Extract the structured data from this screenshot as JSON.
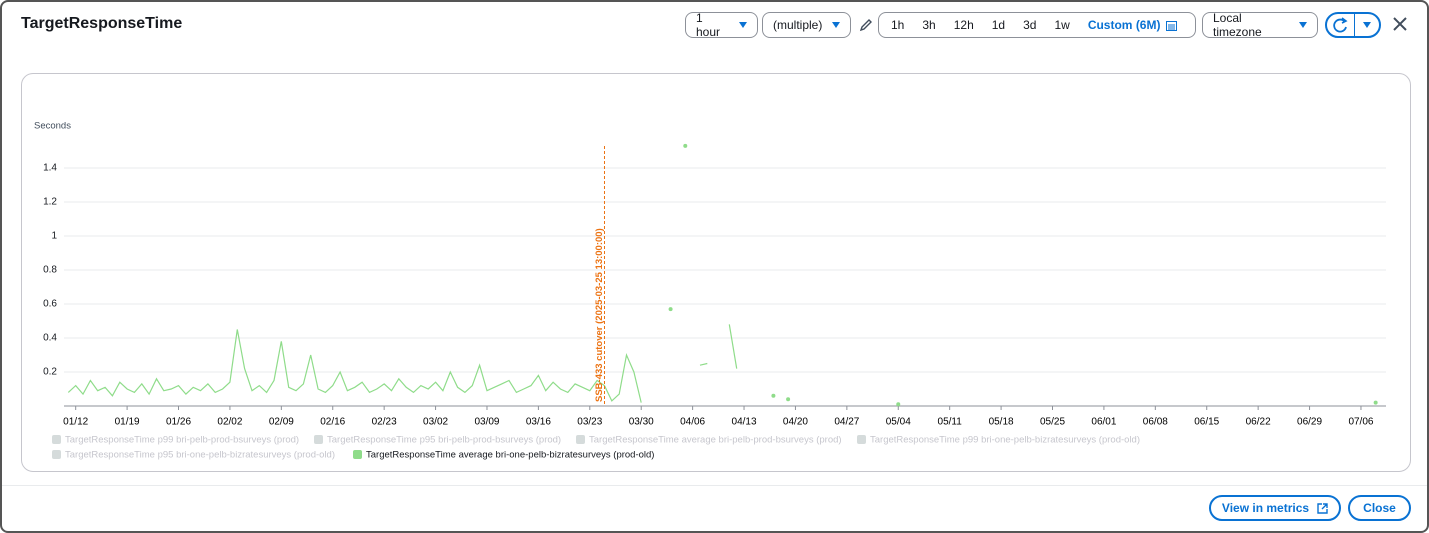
{
  "header": {
    "title": "TargetResponseTime",
    "period": "1 hour",
    "statistic": "(multiple)",
    "ranges": [
      "1h",
      "3h",
      "12h",
      "1d",
      "3d",
      "1w"
    ],
    "custom_range": "Custom (6M)",
    "timezone": "Local timezone"
  },
  "chart_data": {
    "type": "line",
    "y_label": "Seconds",
    "x": [
      "01/11",
      "01/12",
      "01/13",
      "01/14",
      "01/15",
      "01/16",
      "01/17",
      "01/18",
      "01/19",
      "01/20",
      "01/21",
      "01/22",
      "01/23",
      "01/24",
      "01/25",
      "01/26",
      "01/27",
      "01/28",
      "01/29",
      "01/30",
      "01/31",
      "02/01",
      "02/02",
      "02/03",
      "02/04",
      "02/05",
      "02/06",
      "02/07",
      "02/08",
      "02/09",
      "02/10",
      "02/11",
      "02/12",
      "02/13",
      "02/14",
      "02/15",
      "02/16",
      "02/17",
      "02/18",
      "02/19",
      "02/20",
      "02/21",
      "02/22",
      "02/23",
      "02/24",
      "02/25",
      "02/26",
      "02/27",
      "02/28",
      "03/01",
      "03/02",
      "03/03",
      "03/04",
      "03/05",
      "03/06",
      "03/07",
      "03/08",
      "03/09",
      "03/10",
      "03/11",
      "03/12",
      "03/13",
      "03/14",
      "03/15",
      "03/16",
      "03/17",
      "03/18",
      "03/19",
      "03/20",
      "03/21",
      "03/22",
      "03/23",
      "03/24",
      "03/25",
      "03/26",
      "03/27",
      "03/28",
      "03/29",
      "03/30",
      "03/31",
      "04/03",
      "04/04",
      "04/05",
      "04/06",
      "04/07",
      "04/08",
      "04/09",
      "04/11",
      "04/12",
      "04/13",
      "04/17",
      "04/18",
      "04/19",
      "04/20",
      "05/04",
      "05/05",
      "07/08"
    ],
    "series": [
      {
        "name": "TargetResponseTime p99 bri-pelb-prod-bsurveys (prod)",
        "color": "#d5dbdb",
        "visible": false
      },
      {
        "name": "TargetResponseTime p95 bri-pelb-prod-bsurveys (prod)",
        "color": "#d5dbdb",
        "visible": false
      },
      {
        "name": "TargetResponseTime average bri-pelb-prod-bsurveys (prod)",
        "color": "#d5dbdb",
        "visible": false
      },
      {
        "name": "TargetResponseTime p99 bri-one-pelb-bizratesurveys (prod-old)",
        "color": "#d5dbdb",
        "visible": false
      },
      {
        "name": "TargetResponseTime p95 bri-one-pelb-bizratesurveys (prod-old)",
        "color": "#d5dbdb",
        "visible": false
      },
      {
        "name": "TargetResponseTime average bri-one-pelb-bizratesurveys (prod-old)",
        "color": "#8fdc8a",
        "visible": true,
        "values": [
          0.08,
          0.12,
          0.07,
          0.15,
          0.09,
          0.11,
          0.06,
          0.14,
          0.1,
          0.08,
          0.13,
          0.07,
          0.16,
          0.09,
          0.1,
          0.12,
          0.07,
          0.11,
          0.09,
          0.13,
          0.08,
          0.1,
          0.14,
          0.45,
          0.22,
          0.09,
          0.12,
          0.08,
          0.15,
          0.38,
          0.11,
          0.09,
          0.13,
          0.3,
          0.1,
          0.08,
          0.12,
          0.2,
          0.09,
          0.11,
          0.14,
          0.08,
          0.1,
          0.13,
          0.09,
          0.16,
          0.11,
          0.08,
          0.12,
          0.1,
          0.14,
          0.09,
          0.2,
          0.11,
          0.08,
          0.12,
          0.24,
          0.09,
          0.11,
          0.13,
          0.15,
          0.08,
          0.1,
          0.12,
          0.18,
          0.09,
          0.14,
          0.1,
          0.08,
          0.13,
          0.11,
          0.09,
          0.15,
          0.12,
          0.03,
          0.07,
          0.3,
          0.2,
          0.02,
          null,
          0.57,
          null,
          1.53,
          null,
          0.24,
          0.25,
          null,
          0.48,
          0.22,
          null,
          0.06,
          null,
          0.04,
          null,
          0.01,
          null,
          0.02
        ]
      }
    ],
    "xlim": [
      "01/10",
      "07/09"
    ],
    "xticks": [
      "01/12",
      "01/19",
      "01/26",
      "02/02",
      "02/09",
      "02/16",
      "02/23",
      "03/02",
      "03/09",
      "03/16",
      "03/23",
      "03/30",
      "04/06",
      "04/13",
      "04/20",
      "04/27",
      "05/04",
      "05/11",
      "05/18",
      "05/25",
      "06/01",
      "06/08",
      "06/15",
      "06/22",
      "06/29",
      "07/06"
    ],
    "ylim": [
      0,
      1.6
    ],
    "yticks": [
      0.2,
      0.4,
      0.6,
      0.8,
      1,
      1.2,
      1.4
    ],
    "grid": true,
    "annotations": [
      {
        "label": "SSB-433 cutover (2025-03-25 13:00:00)",
        "x": "03/25",
        "color": "#ec7211"
      }
    ]
  },
  "footer": {
    "view_button": "View in metrics",
    "close_button": "Close"
  }
}
